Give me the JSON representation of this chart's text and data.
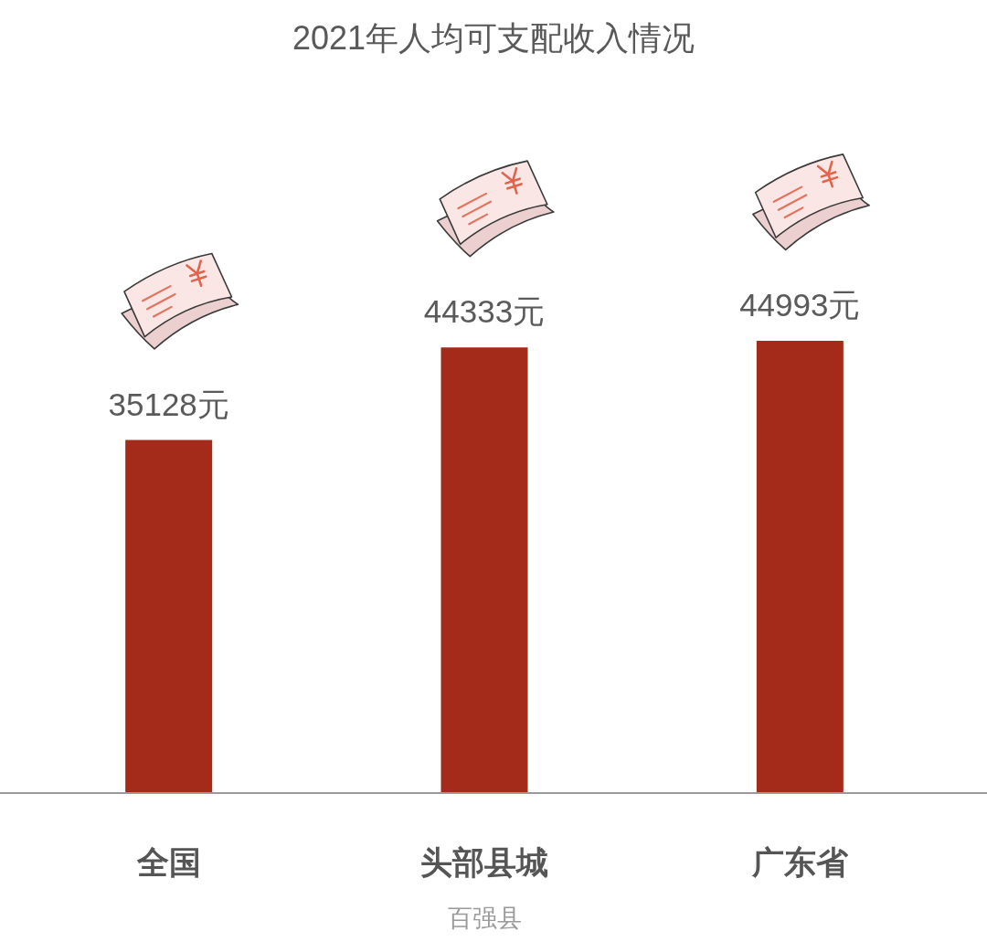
{
  "chart_data": {
    "type": "bar",
    "title": "2021年人均可支配收入情况",
    "categories": [
      "全国",
      "头部县城",
      "广东省"
    ],
    "values": [
      35128,
      44333,
      44993
    ],
    "color": "#a42b1a",
    "value_labels": [
      "35128元",
      "44333元",
      "44993元"
    ],
    "annotations": [
      "百强县"
    ]
  }
}
